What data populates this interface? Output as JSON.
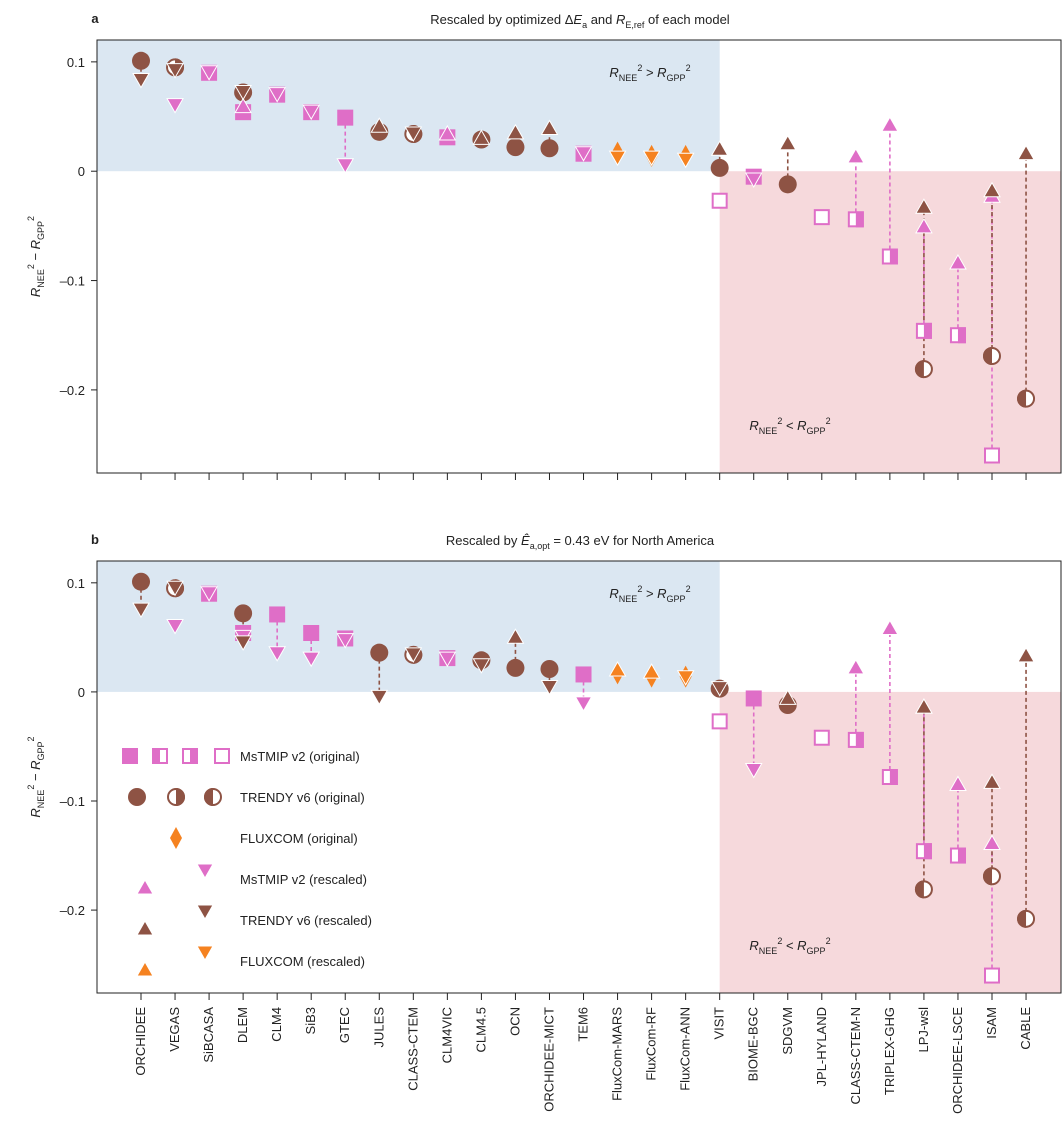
{
  "chart_data": [
    {
      "type": "scatter",
      "panel_label": "a",
      "title": [
        "Rescaled by optimized Δ",
        "E",
        "a",
        " and ",
        "R",
        "E,ref",
        " of each model"
      ],
      "ylabel": [
        "R",
        "NEE",
        "2",
        " − ",
        "R",
        "GPP",
        "2"
      ],
      "annotations": [
        [
          "R",
          "NEE",
          "2",
          " > ",
          "R",
          "GPP",
          "2"
        ],
        [
          "R",
          "NEE",
          "2",
          " < ",
          "R",
          "GPP",
          "2"
        ]
      ],
      "ylim": [
        -0.276,
        0.12
      ],
      "yticks": [
        0.1,
        0,
        {
          "value": -0.1,
          "label": "–0.1"
        },
        {
          "value": -0.2,
          "label": "–0.2"
        }
      ],
      "series": [
        {
          "color": "#df6ec7",
          "marker": "square",
          "values": [
            null,
            null,
            0.09,
            0.054,
            0.07,
            0.054,
            0.049,
            null,
            null,
            0.031,
            null,
            null,
            null,
            0.016,
            null,
            null,
            null,
            -0.027,
            -0.005,
            null,
            -0.042,
            -0.044,
            -0.078,
            -0.146,
            -0.15,
            -0.26,
            null
          ],
          "fill": [
            null,
            null,
            "full",
            "full",
            "full",
            "full",
            "full",
            null,
            null,
            "full",
            null,
            null,
            null,
            "full",
            null,
            null,
            null,
            "open",
            "full",
            null,
            "open",
            "right",
            "right",
            "right",
            "right",
            "open",
            null
          ]
        },
        {
          "color": "#8e5344",
          "marker": "circle",
          "values": [
            0.101,
            0.095,
            null,
            0.072,
            null,
            null,
            null,
            0.036,
            0.034,
            null,
            0.029,
            0.022,
            0.021,
            null,
            null,
            null,
            null,
            0.003,
            null,
            -0.012,
            null,
            null,
            null,
            -0.181,
            null,
            -0.169,
            -0.208
          ],
          "fill": [
            "full",
            "right",
            null,
            "full",
            null,
            null,
            null,
            "full",
            "right",
            null,
            "full",
            "full",
            "full",
            null,
            null,
            null,
            null,
            "full",
            null,
            "full",
            null,
            null,
            null,
            "left",
            null,
            "left",
            "left"
          ]
        },
        {
          "color": "#f58220",
          "marker": "diamond",
          "values": [
            null,
            null,
            null,
            null,
            null,
            null,
            null,
            null,
            null,
            null,
            null,
            null,
            null,
            null,
            0.017,
            0.014,
            0.014,
            null,
            null,
            null,
            null,
            null,
            null,
            null,
            null,
            null,
            null
          ]
        },
        {
          "color": "#df6ec7",
          "marker": "triangle",
          "values": [
            null,
            0.06,
            0.09,
            0.06,
            0.07,
            0.054,
            0.005,
            null,
            null,
            0.035,
            null,
            null,
            null,
            0.016,
            null,
            null,
            null,
            null,
            -0.008,
            null,
            null,
            0.014,
            0.043,
            -0.05,
            -0.083,
            -0.022,
            null
          ]
        },
        {
          "color": "#8e5344",
          "marker": "triangle",
          "values": [
            0.083,
            0.092,
            null,
            0.072,
            null,
            null,
            null,
            0.042,
            0.034,
            null,
            0.031,
            0.036,
            0.04,
            null,
            null,
            null,
            null,
            0.021,
            null,
            0.026,
            null,
            null,
            null,
            -0.032,
            null,
            -0.017,
            0.017
          ]
        },
        {
          "color": "#f58220",
          "marker": "triangle",
          "values": [
            null,
            null,
            null,
            null,
            null,
            null,
            null,
            null,
            null,
            null,
            null,
            null,
            null,
            null,
            0.012,
            0.012,
            0.01,
            null,
            null,
            null,
            null,
            null,
            null,
            null,
            null,
            null,
            null
          ]
        }
      ]
    },
    {
      "type": "scatter",
      "panel_label": "b",
      "title": [
        "Rescaled by ",
        "Ê",
        "a,opt",
        " = 0.43 eV for North America"
      ],
      "ylabel": [
        "R",
        "NEE",
        "2",
        " − ",
        "R",
        "GPP",
        "2"
      ],
      "annotations": [
        [
          "R",
          "NEE",
          "2",
          " > ",
          "R",
          "GPP",
          "2"
        ],
        [
          "R",
          "NEE",
          "2",
          " < ",
          "R",
          "GPP",
          "2"
        ]
      ],
      "categories": [
        "ORCHIDEE",
        "VEGAS",
        "SiBCASA",
        "DLEM",
        "CLM4",
        "SiB3",
        "GTEC",
        "JULES",
        "CLASS-CTEM",
        "CLM4VIC",
        "CLM4.5",
        "OCN",
        "ORCHIDEE-MICT",
        "TEM6",
        "FluxCom-MARS",
        "FluxCom-RF",
        "FluxCom-ANN",
        "VISIT",
        "BIOME-BGC",
        "SDGVM",
        "JPL-HYLAND",
        "CLASS-CTEM-N",
        "TRIPLEX-GHG",
        "LPJ-wsl",
        "ORCHIDEE-LSCE",
        "ISAM",
        "CABLE"
      ],
      "ylim": [
        -0.276,
        0.12
      ],
      "yticks": [
        0.1,
        0,
        {
          "value": -0.1,
          "label": "–0.1"
        },
        {
          "value": -0.2,
          "label": "–0.2"
        }
      ],
      "legend": "lower left",
      "series": [
        {
          "name": "MsTMIP v2 (original)",
          "color": "#df6ec7",
          "marker": "square",
          "values": [
            null,
            null,
            0.09,
            0.054,
            0.071,
            0.054,
            0.049,
            null,
            null,
            0.031,
            null,
            null,
            null,
            0.016,
            null,
            null,
            null,
            -0.027,
            -0.006,
            null,
            -0.042,
            -0.044,
            -0.078,
            -0.146,
            -0.15,
            -0.26,
            null
          ],
          "fill": [
            null,
            null,
            "full",
            "full",
            "full",
            "full",
            "full",
            null,
            null,
            "full",
            null,
            null,
            null,
            "full",
            null,
            null,
            null,
            "open",
            "full",
            null,
            "open",
            "right",
            "right",
            "right",
            "right",
            "open",
            null
          ]
        },
        {
          "name": "TRENDY v6 (original)",
          "color": "#8e5344",
          "marker": "circle",
          "values": [
            0.101,
            0.095,
            null,
            0.072,
            null,
            null,
            null,
            0.036,
            0.034,
            null,
            0.029,
            0.022,
            0.021,
            null,
            null,
            null,
            null,
            0.003,
            null,
            -0.012,
            null,
            null,
            null,
            -0.181,
            null,
            -0.169,
            -0.208
          ],
          "fill": [
            "full",
            "right",
            null,
            "full",
            null,
            null,
            null,
            "full",
            "right",
            null,
            "full",
            "full",
            "full",
            null,
            null,
            null,
            null,
            "full",
            null,
            "full",
            null,
            null,
            null,
            "left",
            null,
            "left",
            "left"
          ]
        },
        {
          "name": "FLUXCOM (original)",
          "color": "#f58220",
          "marker": "diamond",
          "values": [
            null,
            null,
            null,
            null,
            null,
            null,
            null,
            null,
            null,
            null,
            null,
            null,
            null,
            null,
            0.017,
            0.014,
            0.014,
            null,
            null,
            null,
            null,
            null,
            null,
            null,
            null,
            null,
            null
          ]
        },
        {
          "name": "MsTMIP v2 (rescaled)",
          "color": "#df6ec7",
          "marker": "triangle",
          "values": [
            null,
            0.06,
            0.09,
            0.05,
            0.035,
            0.03,
            0.047,
            null,
            null,
            0.03,
            null,
            null,
            null,
            -0.011,
            null,
            null,
            null,
            null,
            -0.072,
            null,
            null,
            0.023,
            0.059,
            -0.013,
            -0.084,
            -0.138,
            null
          ]
        },
        {
          "name": "TRENDY v6 (rescaled)",
          "color": "#8e5344",
          "marker": "triangle",
          "values": [
            0.075,
            0.095,
            null,
            0.045,
            null,
            null,
            null,
            -0.005,
            0.034,
            null,
            0.024,
            0.051,
            0.004,
            null,
            null,
            null,
            null,
            0.003,
            null,
            -0.005,
            null,
            null,
            null,
            -0.013,
            null,
            -0.082,
            0.034
          ]
        },
        {
          "name": "FLUXCOM (rescaled)",
          "color": "#f58220",
          "marker": "triangle",
          "values": [
            null,
            null,
            null,
            null,
            null,
            null,
            null,
            null,
            null,
            null,
            null,
            null,
            null,
            null,
            0.021,
            0.019,
            0.013,
            null,
            null,
            null,
            null,
            null,
            null,
            null,
            null,
            null,
            null
          ]
        }
      ]
    }
  ]
}
